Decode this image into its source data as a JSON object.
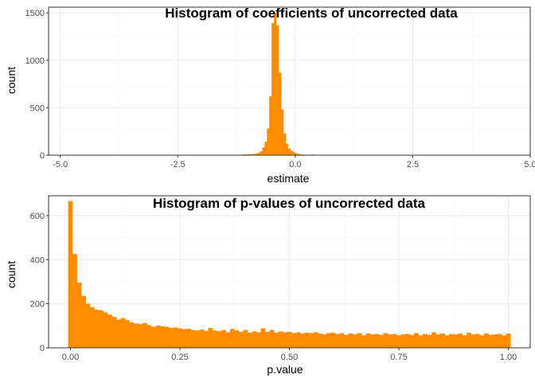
{
  "colors": {
    "bar": "#ff8c00",
    "panel_border": "#333333",
    "grid_major": "#ebebeb",
    "grid_minor": "#f5f5f5"
  },
  "chart_data": [
    {
      "type": "bar",
      "title": "Histogram of coefficients of uncorrected data",
      "xlabel": "estimate",
      "ylabel": "count",
      "xlim": [
        -5.25,
        5.0
      ],
      "ylim": [
        0,
        1560
      ],
      "xticks": [
        -5.0,
        -2.5,
        0.0,
        2.5,
        5.0
      ],
      "xtick_labels": [
        "-5.0",
        "-2.5",
        "0.0",
        "2.5",
        "5.0"
      ],
      "yticks": [
        0,
        500,
        1000,
        1500
      ],
      "ytick_labels": [
        "0",
        "500",
        "1000",
        "1500"
      ],
      "grid": true,
      "bin_start": -1.2,
      "bin_width": 0.05,
      "values": [
        3,
        5,
        8,
        6,
        8,
        10,
        12,
        16,
        22,
        40,
        80,
        140,
        280,
        620,
        1390,
        1500,
        1370,
        870,
        480,
        230,
        120,
        70,
        45,
        30,
        18,
        12,
        8,
        5,
        3,
        2,
        4,
        5,
        3,
        2,
        1,
        0,
        0,
        0,
        3
      ]
    },
    {
      "type": "bar",
      "title": "Histogram of p-values of uncorrected data",
      "xlabel": "p.value",
      "ylabel": "count",
      "xlim": [
        -0.05,
        1.05
      ],
      "ylim": [
        0,
        690
      ],
      "xticks": [
        0.0,
        0.25,
        0.5,
        0.75,
        1.0
      ],
      "xtick_labels": [
        "0.00",
        "0.25",
        "0.50",
        "0.75",
        "1.00"
      ],
      "yticks": [
        0,
        200,
        400,
        600
      ],
      "ytick_labels": [
        "0",
        "200",
        "400",
        "600"
      ],
      "grid": true,
      "bin_start": -0.005,
      "bin_width": 0.01,
      "values": [
        665,
        425,
        295,
        235,
        200,
        183,
        172,
        170,
        160,
        150,
        140,
        128,
        135,
        125,
        115,
        110,
        108,
        112,
        102,
        95,
        100,
        97,
        95,
        90,
        92,
        88,
        84,
        86,
        80,
        78,
        82,
        76,
        90,
        78,
        75,
        80,
        70,
        85,
        78,
        72,
        80,
        68,
        74,
        70,
        88,
        72,
        80,
        68,
        74,
        70,
        72,
        66,
        70,
        64,
        68,
        66,
        70,
        64,
        60,
        66,
        68,
        62,
        66,
        58,
        64,
        60,
        66,
        56,
        64,
        60,
        62,
        58,
        66,
        60,
        62,
        56,
        60,
        62,
        58,
        66,
        56,
        62,
        58,
        70,
        60,
        64,
        56,
        62,
        60,
        64,
        56,
        68,
        60,
        62,
        56,
        64,
        58,
        60,
        62,
        56,
        64
      ]
    }
  ]
}
